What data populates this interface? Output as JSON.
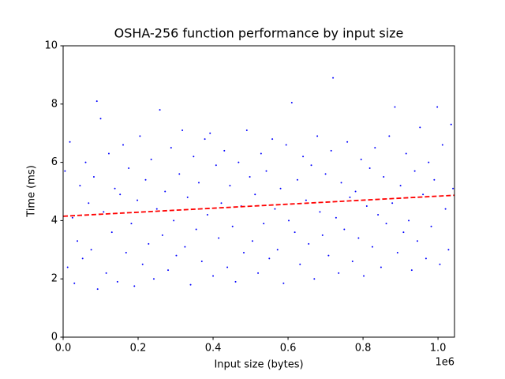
{
  "chart_data": {
    "type": "scatter",
    "title": "OSHA-256 function performance by input size",
    "x_label": "Input size (bytes)",
    "y_label": "Time (ms)",
    "x_offset_label": "1e6",
    "xlim": [
      0,
      1044000
    ],
    "ylim": [
      0,
      10
    ],
    "xticks": [
      {
        "value": 0,
        "label": "0.0"
      },
      {
        "value": 200000,
        "label": "0.2"
      },
      {
        "value": 400000,
        "label": "0.4"
      },
      {
        "value": 600000,
        "label": "0.6"
      },
      {
        "value": 800000,
        "label": "0.8"
      },
      {
        "value": 1000000,
        "label": "1.0"
      }
    ],
    "yticks": [
      0,
      2,
      4,
      6,
      8,
      10
    ],
    "grid": false,
    "points": {
      "color": "#0000ff",
      "x": [
        5000,
        12000,
        18000,
        25000,
        30000,
        38000,
        45000,
        52000,
        60000,
        68000,
        75000,
        82000,
        90000,
        92000,
        100000,
        108000,
        115000,
        122000,
        130000,
        138000,
        145000,
        152000,
        160000,
        168000,
        175000,
        182000,
        190000,
        198000,
        205000,
        212000,
        220000,
        228000,
        235000,
        242000,
        250000,
        258000,
        265000,
        272000,
        280000,
        288000,
        295000,
        302000,
        310000,
        318000,
        325000,
        332000,
        340000,
        348000,
        355000,
        362000,
        370000,
        378000,
        385000,
        392000,
        400000,
        408000,
        415000,
        422000,
        430000,
        438000,
        445000,
        452000,
        460000,
        468000,
        475000,
        482000,
        490000,
        498000,
        505000,
        512000,
        520000,
        528000,
        535000,
        542000,
        550000,
        558000,
        565000,
        572000,
        580000,
        588000,
        595000,
        602000,
        610000,
        618000,
        625000,
        632000,
        640000,
        648000,
        655000,
        662000,
        670000,
        678000,
        685000,
        692000,
        700000,
        708000,
        715000,
        720000,
        728000,
        735000,
        742000,
        750000,
        758000,
        765000,
        772000,
        780000,
        788000,
        795000,
        802000,
        810000,
        818000,
        825000,
        832000,
        840000,
        848000,
        855000,
        862000,
        870000,
        878000,
        885000,
        892000,
        900000,
        908000,
        915000,
        922000,
        930000,
        938000,
        945000,
        952000,
        960000,
        968000,
        975000,
        982000,
        990000,
        998000,
        1005000,
        1012000,
        1020000,
        1028000,
        1035000,
        1040000
      ],
      "y": [
        5.7,
        2.4,
        6.7,
        4.1,
        1.85,
        3.3,
        5.2,
        2.7,
        6.0,
        4.6,
        3.0,
        5.5,
        8.1,
        1.65,
        7.5,
        4.3,
        2.2,
        6.3,
        3.6,
        5.1,
        1.9,
        4.9,
        6.6,
        2.9,
        5.8,
        3.9,
        1.75,
        4.7,
        6.9,
        2.5,
        5.4,
        3.2,
        6.1,
        2.0,
        4.4,
        7.8,
        3.5,
        5.0,
        2.3,
        6.5,
        4.0,
        2.8,
        5.6,
        7.1,
        3.1,
        4.8,
        1.8,
        6.2,
        3.7,
        5.3,
        2.6,
        6.8,
        4.2,
        7.0,
        2.1,
        5.9,
        3.4,
        4.6,
        6.4,
        2.4,
        5.2,
        3.8,
        1.9,
        6.0,
        4.5,
        2.9,
        7.1,
        5.5,
        3.3,
        4.9,
        2.2,
        6.3,
        3.9,
        5.7,
        2.7,
        6.8,
        4.4,
        3.0,
        5.1,
        1.85,
        6.6,
        4.0,
        8.05,
        3.6,
        5.4,
        2.5,
        6.2,
        4.7,
        3.2,
        5.9,
        2.0,
        6.9,
        4.3,
        3.5,
        5.6,
        2.8,
        6.4,
        8.9,
        4.1,
        2.2,
        5.3,
        3.7,
        6.7,
        4.8,
        2.6,
        5.0,
        3.4,
        6.1,
        2.1,
        4.5,
        5.8,
        3.1,
        6.5,
        4.2,
        2.4,
        5.5,
        3.9,
        6.9,
        4.6,
        7.9,
        2.9,
        5.2,
        3.6,
        6.3,
        4.0,
        2.3,
        5.7,
        3.3,
        7.2,
        4.9,
        2.7,
        6.0,
        3.8,
        5.4,
        7.9,
        2.5,
        6.6,
        4.4,
        3.0,
        7.3,
        5.1
      ]
    },
    "trend": {
      "color": "#ff0000",
      "x": [
        0,
        1044000
      ],
      "y": [
        4.15,
        4.87
      ]
    }
  }
}
